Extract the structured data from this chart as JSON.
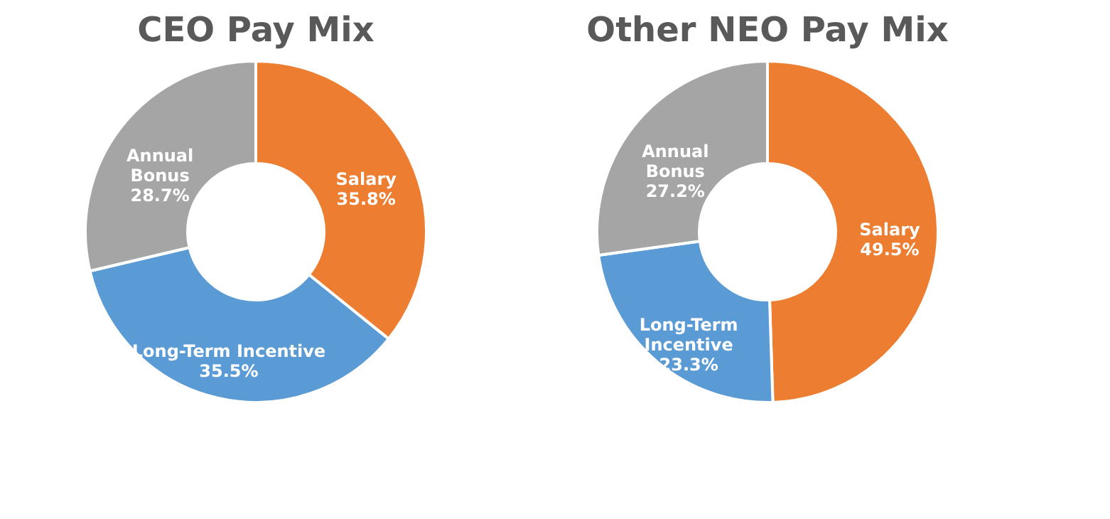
{
  "chart_data": [
    {
      "type": "donut",
      "title": "CEO Pay Mix",
      "categories": [
        "Salary",
        "Long-Term Incentive",
        "Annual\nBonus"
      ],
      "values": [
        35.8,
        35.5,
        28.7
      ],
      "value_labels": [
        "35.8%",
        "35.5%",
        "28.7%"
      ],
      "colors": [
        "#ed7d31",
        "#5b9bd5",
        "#a5a5a5"
      ]
    },
    {
      "type": "donut",
      "title": "Other NEO Pay Mix",
      "categories": [
        "Salary",
        "Long-Term\nIncentive",
        "Annual\nBonus"
      ],
      "values": [
        49.5,
        23.3,
        27.2
      ],
      "value_labels": [
        "49.5%",
        "23.3%",
        "27.2%"
      ],
      "colors": [
        "#ed7d31",
        "#5b9bd5",
        "#a5a5a5"
      ]
    }
  ]
}
